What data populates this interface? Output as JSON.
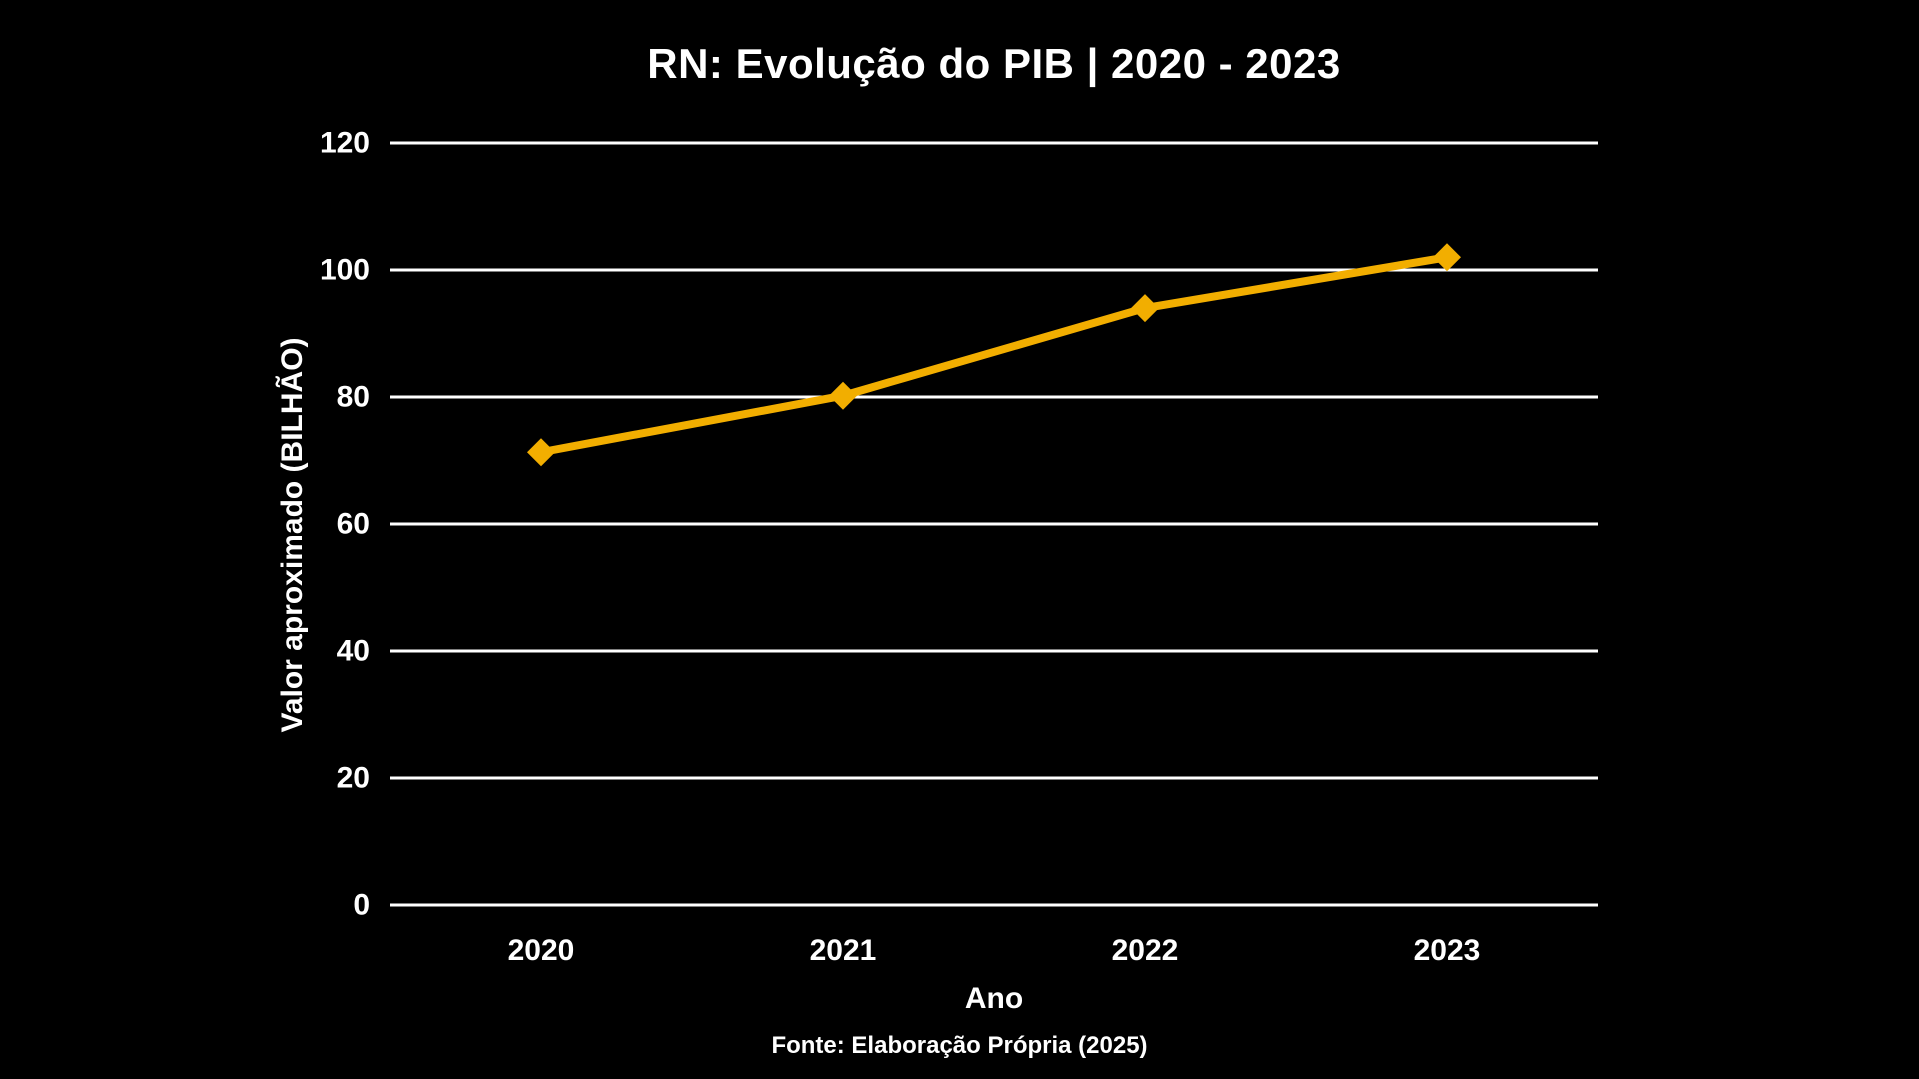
{
  "page": {
    "background": "#000000",
    "text_color": "#FFFFFF"
  },
  "chart_data": {
    "type": "line",
    "title": "RN: Evolução do PIB | 2020 - 2023",
    "xlabel": "Ano",
    "ylabel": "Valor aproximado (BILHÃO)",
    "source_note": "Fonte: Elaboração Própria (2025)",
    "categories": [
      "2020",
      "2021",
      "2022",
      "2023"
    ],
    "series": [
      {
        "name": "PIB",
        "values": [
          71.3,
          80.2,
          94,
          102
        ]
      }
    ],
    "y_ticks": [
      0,
      20,
      40,
      60,
      80,
      100,
      120
    ],
    "ylim": [
      0,
      120
    ],
    "grid": true,
    "legend": false,
    "line_color": "#F2AE00",
    "marker": "diamond",
    "marker_color": "#F2AE00",
    "gridline_color": "#FFFFFF",
    "background": "#000000",
    "text_color": "#FFFFFF"
  }
}
